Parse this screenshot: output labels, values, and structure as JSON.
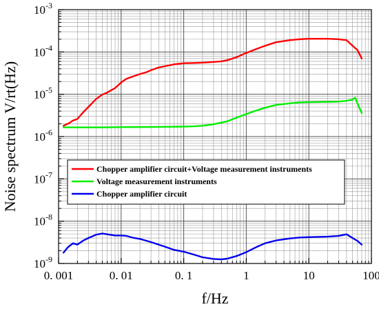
{
  "chart_data": {
    "type": "line",
    "xlabel": "f/Hz",
    "ylabel": "Noise spectrum V/rt(Hz)",
    "xscale": "log",
    "yscale": "log",
    "xlim": [
      0.001,
      100
    ],
    "ylim": [
      1e-09,
      0.001
    ],
    "x_ticks": [
      {
        "value": 0.001,
        "label": "0. 001"
      },
      {
        "value": 0.01,
        "label": "0. 01"
      },
      {
        "value": 0.1,
        "label": "0. 1"
      },
      {
        "value": 1,
        "label": "1"
      },
      {
        "value": 10,
        "label": "10"
      },
      {
        "value": 100,
        "label": "100"
      }
    ],
    "y_ticks": [
      {
        "value": 1e-09,
        "base": "10",
        "exp": "-9"
      },
      {
        "value": 1e-08,
        "base": "10",
        "exp": "-8"
      },
      {
        "value": 1e-07,
        "base": "10",
        "exp": "-7"
      },
      {
        "value": 1e-06,
        "base": "10",
        "exp": "-6"
      },
      {
        "value": 1e-05,
        "base": "10",
        "exp": "-5"
      },
      {
        "value": 0.0001,
        "base": "10",
        "exp": "-4"
      },
      {
        "value": 0.001,
        "base": "10",
        "exp": "-3"
      }
    ],
    "grid": true,
    "legend_position": "lower-left",
    "series": [
      {
        "name": "Chopper amplifier circuit+Voltage measurement instruments",
        "color": "#ff0000",
        "x": [
          0.0012,
          0.0013,
          0.0015,
          0.0017,
          0.002,
          0.0025,
          0.003,
          0.004,
          0.005,
          0.006,
          0.007,
          0.008,
          0.01,
          0.012,
          0.015,
          0.02,
          0.025,
          0.03,
          0.04,
          0.05,
          0.07,
          0.1,
          0.15,
          0.2,
          0.3,
          0.4,
          0.5,
          0.7,
          1,
          1.5,
          2,
          3,
          5,
          7,
          10,
          15,
          20,
          30,
          40,
          50,
          60,
          70
        ],
        "y": [
          1.8e-06,
          1.9e-06,
          2.1e-06,
          2.4e-06,
          2.6e-06,
          3.8e-06,
          5e-06,
          7.8e-06,
          9.8e-06,
          1.1e-05,
          1.25e-05,
          1.4e-05,
          1.9e-05,
          2.3e-05,
          2.6e-05,
          3e-05,
          3.3e-05,
          3.7e-05,
          4.3e-05,
          4.6e-05,
          5.1e-05,
          5.4e-05,
          5.5e-05,
          5.6e-05,
          5.8e-05,
          6e-05,
          6.4e-05,
          7.5e-05,
          9.5e-05,
          0.00012,
          0.00014,
          0.00017,
          0.00019,
          0.0002,
          0.000205,
          0.000205,
          0.000205,
          0.0002,
          0.00019,
          0.00014,
          0.00011,
          7e-05
        ]
      },
      {
        "name": "Voltage measurement instruments",
        "color": "#00ee00",
        "x": [
          0.0012,
          0.002,
          0.005,
          0.01,
          0.02,
          0.05,
          0.1,
          0.15,
          0.2,
          0.3,
          0.5,
          0.7,
          1,
          1.5,
          2,
          3,
          5,
          7,
          10,
          20,
          30,
          40,
          50,
          55,
          60,
          70
        ],
        "y": [
          1.65e-06,
          1.65e-06,
          1.65e-06,
          1.67e-06,
          1.68e-06,
          1.7e-06,
          1.72e-06,
          1.75e-06,
          1.8e-06,
          1.95e-06,
          2.3e-06,
          2.8e-06,
          3.4e-06,
          4.2e-06,
          4.8e-06,
          5.6e-06,
          6.1e-06,
          6.4e-06,
          6.5e-06,
          6.6e-06,
          6.7e-06,
          7e-06,
          7.5e-06,
          8.3e-06,
          6e-06,
          3.6e-06
        ]
      },
      {
        "name": "Chopper amplifier circuit",
        "color": "#0000ee",
        "x": [
          0.0012,
          0.0014,
          0.0017,
          0.002,
          0.0025,
          0.003,
          0.004,
          0.005,
          0.006,
          0.008,
          0.01,
          0.012,
          0.015,
          0.02,
          0.03,
          0.05,
          0.07,
          0.1,
          0.15,
          0.2,
          0.3,
          0.4,
          0.5,
          0.7,
          1,
          1.5,
          2,
          3,
          5,
          7,
          10,
          20,
          30,
          40,
          50,
          60,
          70
        ],
        "y": [
          1.8e-09,
          2.4e-09,
          3e-09,
          2.8e-09,
          3.5e-09,
          4e-09,
          4.8e-09,
          5.1e-09,
          4.9e-09,
          4.6e-09,
          4.6e-09,
          4.5e-09,
          4.1e-09,
          3.8e-09,
          3.2e-09,
          2.5e-09,
          2.1e-09,
          1.9e-09,
          1.6e-09,
          1.4e-09,
          1.28e-09,
          1.25e-09,
          1.3e-09,
          1.5e-09,
          1.85e-09,
          2.5e-09,
          3e-09,
          3.5e-09,
          3.9e-09,
          4.1e-09,
          4.2e-09,
          4.3e-09,
          4.5e-09,
          4.9e-09,
          4e-09,
          3.4e-09,
          2.8e-09
        ]
      }
    ]
  }
}
